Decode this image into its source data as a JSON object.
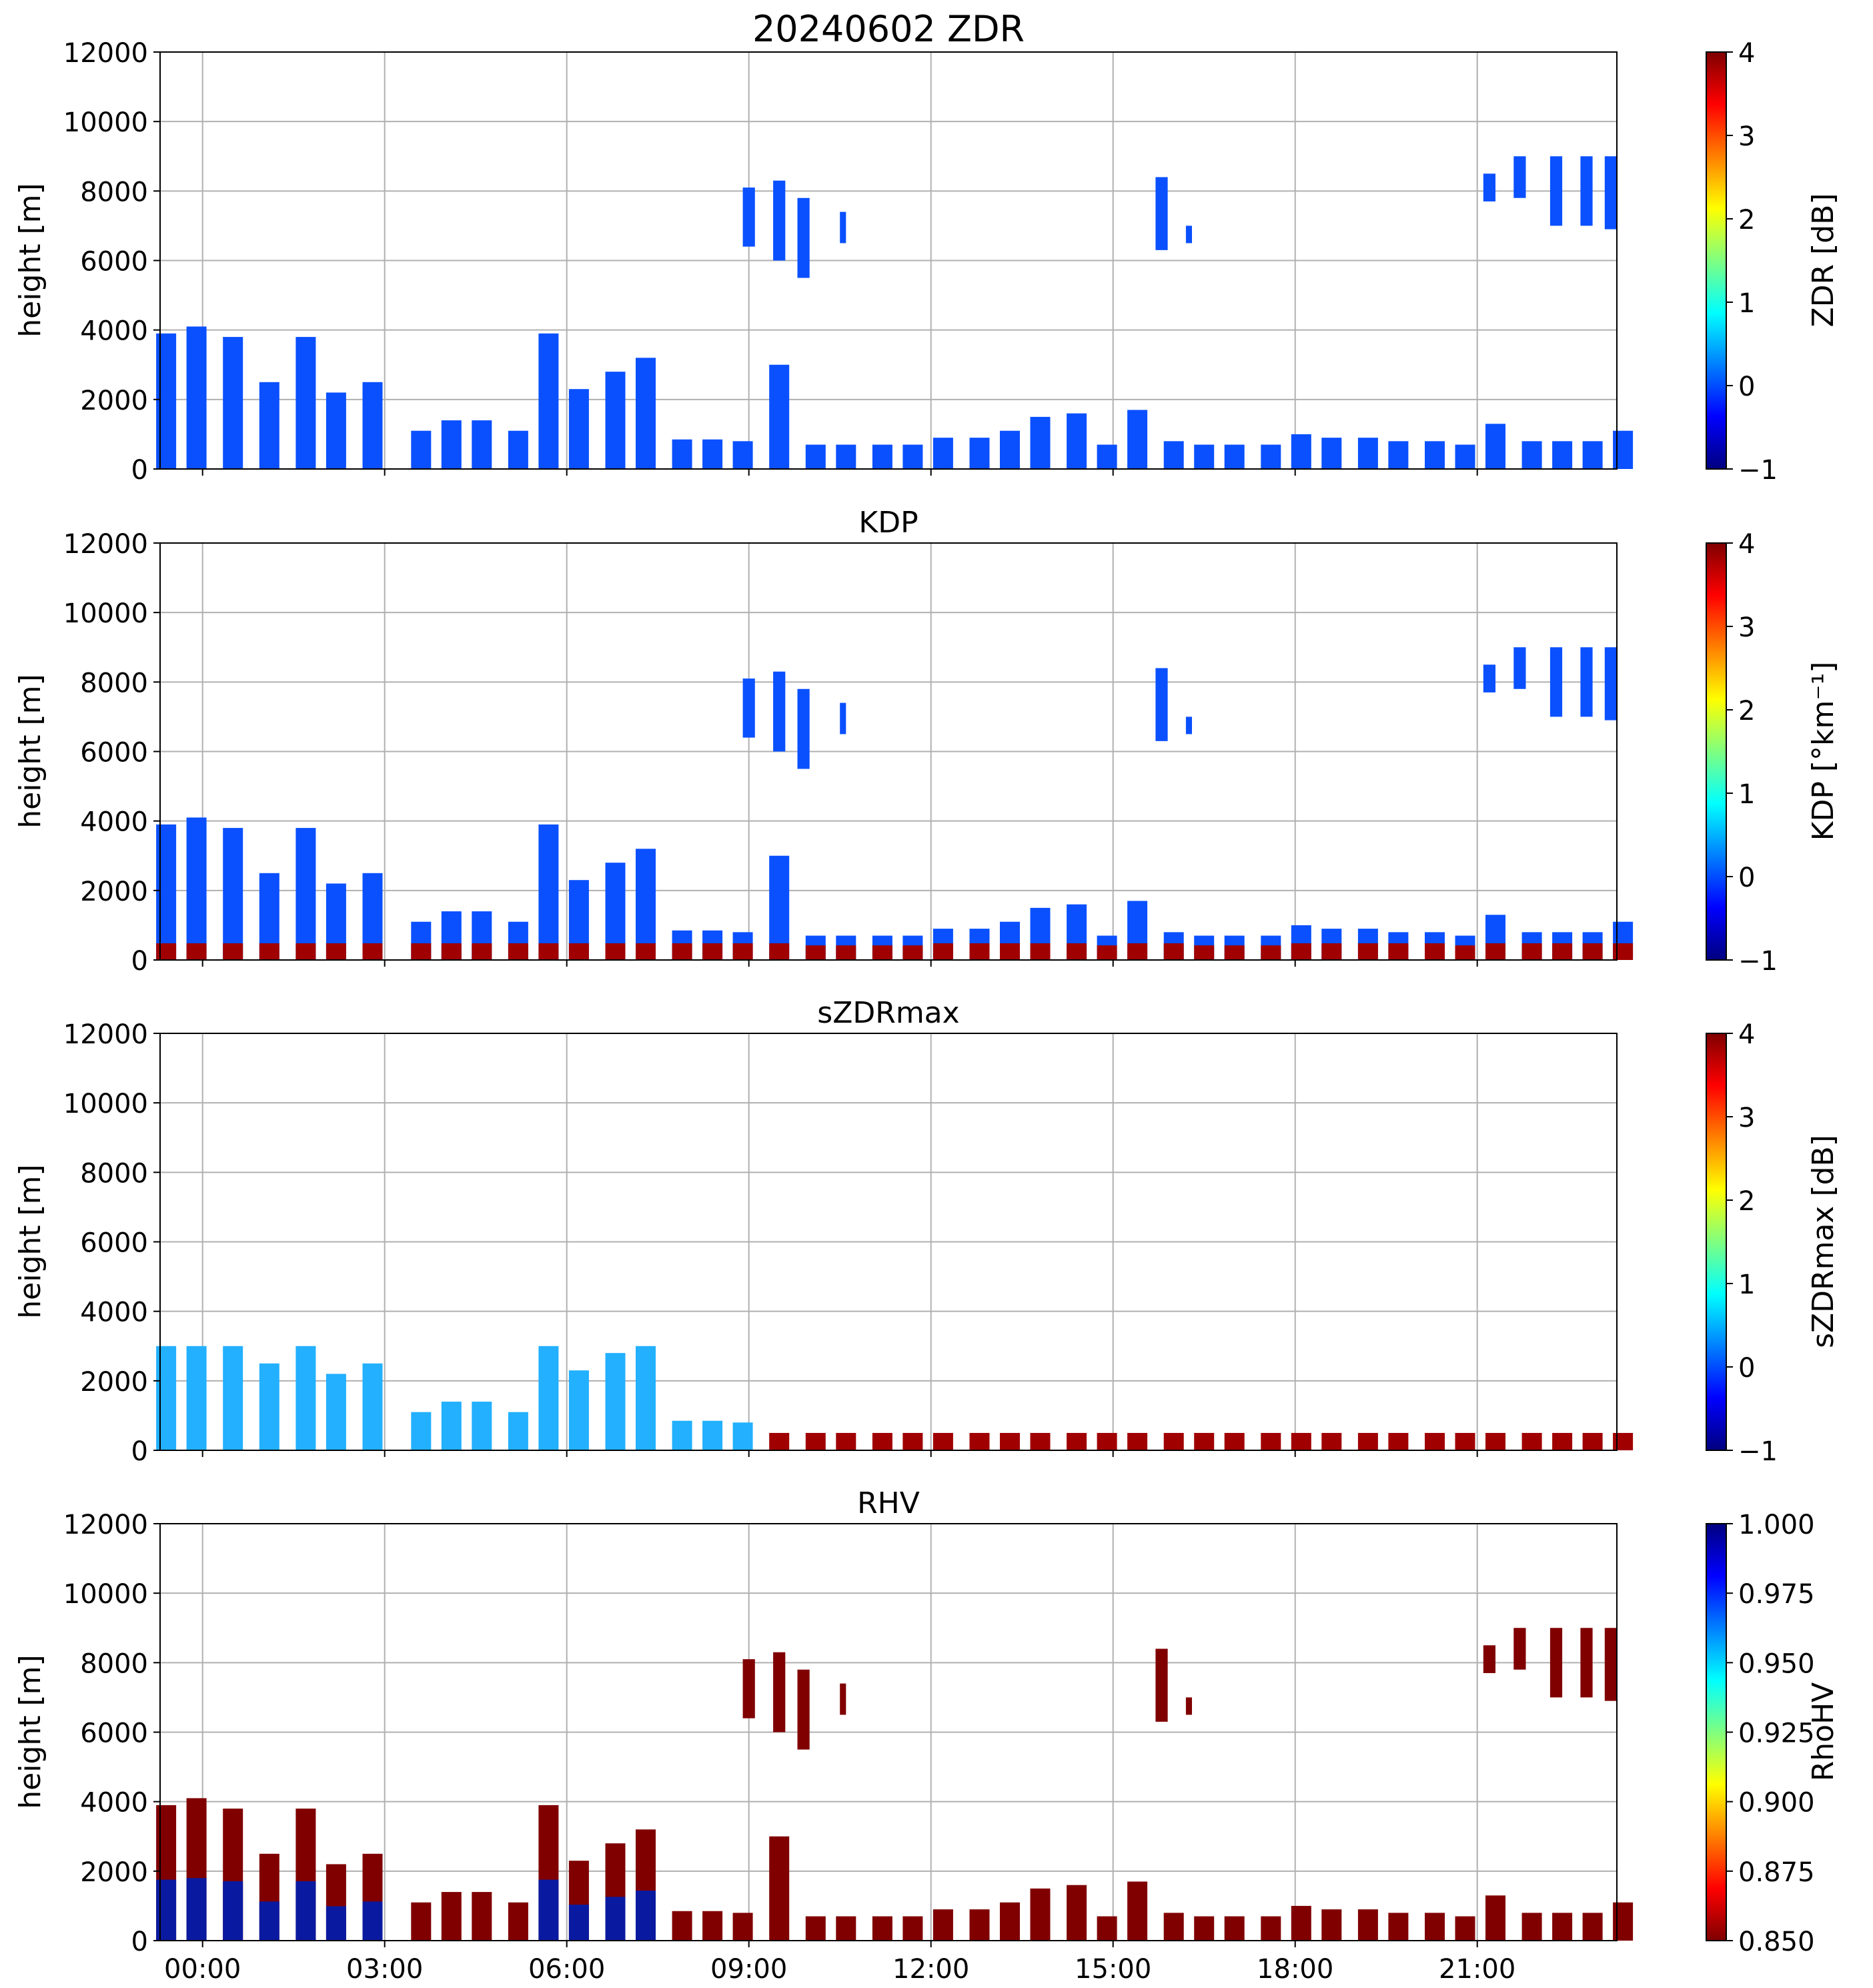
{
  "chart_data": [
    {
      "type": "heatmap",
      "title": "20240602 ZDR",
      "ylabel": "height [m]",
      "ylim": [
        0,
        12000
      ],
      "yticks": [
        "0",
        "2000",
        "4000",
        "6000",
        "8000",
        "10000",
        "12000"
      ],
      "colorbar": {
        "label": "ZDR [dB]",
        "range": [
          -1,
          4
        ],
        "ticks": [
          "−1",
          "0",
          "1",
          "2",
          "3",
          "4"
        ],
        "cmap": "jet"
      }
    },
    {
      "type": "heatmap",
      "title": "KDP",
      "ylabel": "height [m]",
      "ylim": [
        0,
        12000
      ],
      "yticks": [
        "0",
        "2000",
        "4000",
        "6000",
        "8000",
        "10000",
        "12000"
      ],
      "colorbar": {
        "label": "KDP [°km⁻¹]",
        "range": [
          -1,
          4
        ],
        "ticks": [
          "−1",
          "0",
          "1",
          "2",
          "3",
          "4"
        ],
        "cmap": "jet"
      }
    },
    {
      "type": "heatmap",
      "title": "sZDRmax",
      "ylabel": "height [m]",
      "ylim": [
        0,
        12000
      ],
      "yticks": [
        "0",
        "2000",
        "4000",
        "6000",
        "8000",
        "10000",
        "12000"
      ],
      "colorbar": {
        "label": "sZDRmax [dB]",
        "range": [
          -1,
          4
        ],
        "ticks": [
          "−1",
          "0",
          "1",
          "2",
          "3",
          "4"
        ],
        "cmap": "jet"
      }
    },
    {
      "type": "heatmap",
      "title": "RHV",
      "ylabel": "height [m]",
      "ylim": [
        0,
        12000
      ],
      "yticks": [
        "0",
        "2000",
        "4000",
        "6000",
        "8000",
        "10000",
        "12000"
      ],
      "colorbar": {
        "label": "RhoHV",
        "range": [
          0.85,
          1.0
        ],
        "ticks": [
          "0.850",
          "0.875",
          "0.900",
          "0.925",
          "0.950",
          "0.975",
          "1.000"
        ],
        "cmap": "jet"
      }
    }
  ],
  "xaxis": {
    "range_hours": [
      -0.7,
      23.3
    ],
    "tick_hours": [
      0,
      3,
      6,
      9,
      12,
      15,
      18,
      21
    ],
    "tick_labels": [
      "00:00",
      "03:00",
      "06:00",
      "09:00",
      "12:00",
      "15:00",
      "18:00",
      "21:00"
    ]
  },
  "echoes": {
    "low_columns": [
      {
        "t": -0.6,
        "top": 3900
      },
      {
        "t": -0.1,
        "top": 4100
      },
      {
        "t": 0.5,
        "top": 3800
      },
      {
        "t": 1.1,
        "top": 2500
      },
      {
        "t": 1.7,
        "top": 3800
      },
      {
        "t": 2.2,
        "top": 2200
      },
      {
        "t": 2.8,
        "top": 2500
      },
      {
        "t": 3.6,
        "top": 1100
      },
      {
        "t": 4.1,
        "top": 1400
      },
      {
        "t": 4.6,
        "top": 1400
      },
      {
        "t": 5.2,
        "top": 1100
      },
      {
        "t": 5.7,
        "top": 3900
      },
      {
        "t": 6.2,
        "top": 2300
      },
      {
        "t": 6.8,
        "top": 2800
      },
      {
        "t": 7.3,
        "top": 3200
      },
      {
        "t": 7.9,
        "top": 850
      },
      {
        "t": 8.4,
        "top": 850
      },
      {
        "t": 8.9,
        "top": 800
      },
      {
        "t": 9.5,
        "top": 3000
      },
      {
        "t": 10.1,
        "top": 700
      },
      {
        "t": 10.6,
        "top": 700
      },
      {
        "t": 11.2,
        "top": 700
      },
      {
        "t": 11.7,
        "top": 700
      },
      {
        "t": 12.2,
        "top": 900
      },
      {
        "t": 12.8,
        "top": 900
      },
      {
        "t": 13.3,
        "top": 1100
      },
      {
        "t": 13.8,
        "top": 1500
      },
      {
        "t": 14.4,
        "top": 1600
      },
      {
        "t": 14.9,
        "top": 700
      },
      {
        "t": 15.4,
        "top": 1700
      },
      {
        "t": 16.0,
        "top": 800
      },
      {
        "t": 16.5,
        "top": 700
      },
      {
        "t": 17.0,
        "top": 700
      },
      {
        "t": 17.6,
        "top": 700
      },
      {
        "t": 18.1,
        "top": 1000
      },
      {
        "t": 18.6,
        "top": 900
      },
      {
        "t": 19.2,
        "top": 900
      },
      {
        "t": 19.7,
        "top": 800
      },
      {
        "t": 20.3,
        "top": 800
      },
      {
        "t": 20.8,
        "top": 700
      },
      {
        "t": 21.3,
        "top": 1300
      },
      {
        "t": 21.9,
        "top": 800
      },
      {
        "t": 22.4,
        "top": 800
      },
      {
        "t": 22.9,
        "top": 800
      },
      {
        "t": 23.4,
        "top": 1100
      }
    ],
    "high_patches": [
      {
        "t0": 8.9,
        "t1": 9.1,
        "bottom": 6400,
        "top": 8100
      },
      {
        "t0": 9.4,
        "t1": 9.6,
        "bottom": 6000,
        "top": 8300
      },
      {
        "t0": 9.8,
        "t1": 10.0,
        "bottom": 5500,
        "top": 7800
      },
      {
        "t0": 10.5,
        "t1": 10.6,
        "bottom": 6500,
        "top": 7400
      },
      {
        "t0": 15.7,
        "t1": 15.9,
        "bottom": 6300,
        "top": 8400
      },
      {
        "t0": 16.2,
        "t1": 16.3,
        "bottom": 6500,
        "top": 7000
      },
      {
        "t0": 21.1,
        "t1": 21.3,
        "bottom": 7700,
        "top": 8500
      },
      {
        "t0": 21.6,
        "t1": 21.8,
        "bottom": 7800,
        "top": 9000
      },
      {
        "t0": 22.2,
        "t1": 22.4,
        "bottom": 7000,
        "top": 9000
      },
      {
        "t0": 22.7,
        "t1": 22.9,
        "bottom": 7000,
        "top": 9000
      },
      {
        "t0": 23.1,
        "t1": 23.3,
        "bottom": 6900,
        "top": 9000
      }
    ]
  }
}
